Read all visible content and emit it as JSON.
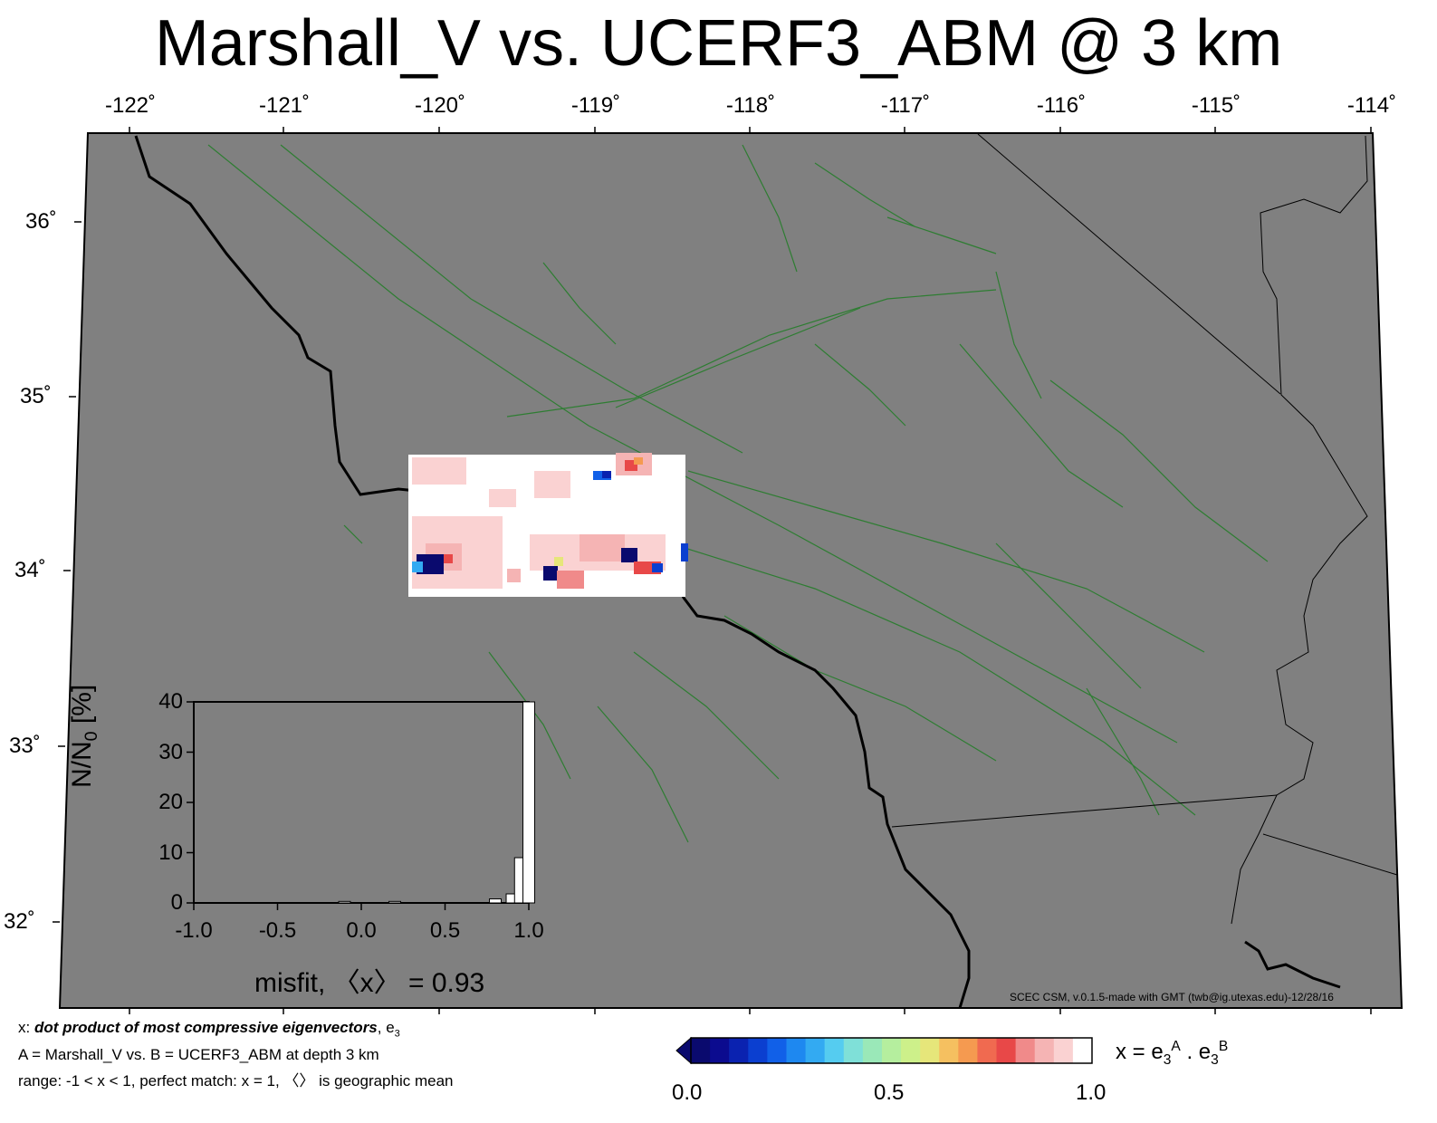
{
  "title": "Marshall_V vs. UCERF3_ABM @ 3 km",
  "map": {
    "lon_ticks": [
      "-122˚",
      "-121˚",
      "-120˚",
      "-119˚",
      "-118˚",
      "-117˚",
      "-116˚",
      "-115˚",
      "-114˚"
    ],
    "lat_ticks": [
      "36˚",
      "35˚",
      "34˚",
      "33˚",
      "32˚"
    ],
    "background_color": "#808080",
    "fault_color": "#2e7d32",
    "coast_color": "#000000",
    "credit": "SCEC CSM, v.0.1.5-made with GMT (twb@ig.utexas.edu)-12/28/16"
  },
  "histogram": {
    "ylabel": "N/N",
    "ylabel_sub": "0",
    "ylabel_suffix": " [%]",
    "y_ticks": [
      "40",
      "30",
      "20",
      "10",
      "0"
    ],
    "x_ticks": [
      "-1.0",
      "-0.5",
      "0.0",
      "0.5",
      "1.0"
    ],
    "xlabel": "misfit, 〈x〉 = 0.93"
  },
  "chart_data": {
    "type": "bar",
    "x": [
      -0.1,
      0.2,
      0.8,
      0.9,
      0.95,
      1.0
    ],
    "values": [
      0.3,
      0.3,
      0.8,
      1.8,
      9.0,
      40.0
    ],
    "ylim": [
      0,
      40
    ],
    "xlim": [
      -1,
      1
    ]
  },
  "legend": {
    "line1_prefix": "x: ",
    "line1_bold": "dot product of most compressive eigenvectors",
    "line1_suffix": ", e",
    "line1_sub": "3",
    "line2": "A = Marshall_V vs.  B = UCERF3_ABM at depth 3 km",
    "line3": "range: -1 < x < 1, perfect match: x = 1, 〈〉 is geographic mean"
  },
  "colorbar": {
    "colors": [
      "#0a0a6e",
      "#0b0b8f",
      "#0a22b0",
      "#0b3fd0",
      "#1160e8",
      "#1e88f0",
      "#33aaf2",
      "#55ccf0",
      "#7fe0d8",
      "#9ae8b8",
      "#b5ee9e",
      "#cdf08a",
      "#e6e67a",
      "#f5c060",
      "#f59a50",
      "#f06a50",
      "#e84848",
      "#f08a8a",
      "#f5b4b4",
      "#fad2d2",
      "#ffffff"
    ],
    "min_label": "0.0",
    "mid_label": "0.5",
    "max_label": "1.0",
    "formula_prefix": "x = e",
    "formula_sub1": "3",
    "formula_sup1": "A",
    "formula_mid": " . e",
    "formula_sub2": "3",
    "formula_sup2": "B"
  }
}
